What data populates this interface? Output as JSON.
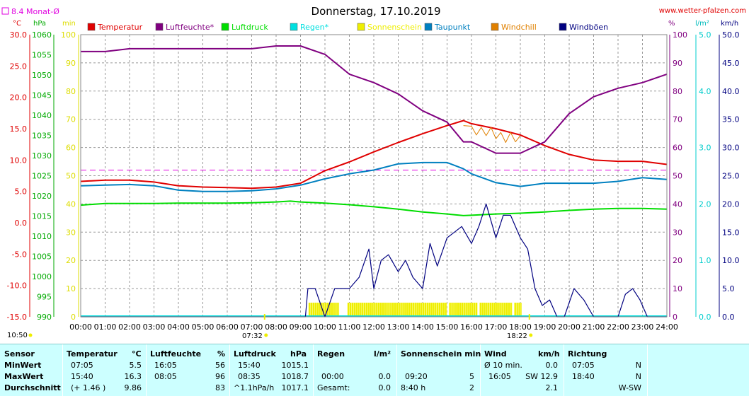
{
  "title": "Donnerstag, 17.10.2019",
  "site": "www.wetter-pfalzen.com",
  "monthly_avg_label": "8.4 Monat-Ø",
  "units": {
    "temp": "°C",
    "press": "hPa",
    "min": "min",
    "pct": "%",
    "rain": "l/m²",
    "wind": "km/h"
  },
  "legend": [
    {
      "name": "Temperatur",
      "color": "#e00000"
    },
    {
      "name": "Luftfeuchte*",
      "color": "#800080"
    },
    {
      "name": "Luftdruck",
      "color": "#00dd00"
    },
    {
      "name": "Regen*",
      "color": "#00e0e0"
    },
    {
      "name": "Sonnenschein",
      "color": "#eeee00"
    },
    {
      "name": "Taupunkt",
      "color": "#0080c0"
    },
    {
      "name": "Windchill",
      "color": "#e08000"
    },
    {
      "name": "Windböen",
      "color": "#000080"
    }
  ],
  "markers": {
    "left_time": "10:50",
    "sunrise": "07:32",
    "sunset": "18:22"
  },
  "chart_data": {
    "type": "line",
    "x_ticks": [
      "00:00",
      "01:00",
      "02:00",
      "03:00",
      "04:00",
      "05:00",
      "06:00",
      "07:00",
      "08:00",
      "09:00",
      "10:00",
      "11:00",
      "12:00",
      "13:00",
      "14:00",
      "15:00",
      "16:00",
      "17:00",
      "18:00",
      "19:00",
      "20:00",
      "21:00",
      "22:00",
      "23:00",
      "24:00"
    ],
    "axes": {
      "temperature": {
        "range": [
          -15,
          30
        ],
        "ticks": [
          "30.0",
          "25.0",
          "20.0",
          "15.0",
          "10.0",
          "5.0",
          "0.0",
          "-5.0",
          "-10.0",
          "-15.0"
        ]
      },
      "pressure": {
        "range": [
          990,
          1060
        ],
        "ticks": [
          "1060",
          "1055",
          "1050",
          "1045",
          "1040",
          "1035",
          "1030",
          "1025",
          "1020",
          "1015",
          "1010",
          "1005",
          "1000",
          "995",
          "990"
        ]
      },
      "sunshine_min": {
        "range": [
          0,
          100
        ],
        "ticks": [
          "100",
          "90",
          "80",
          "70",
          "60",
          "50",
          "40",
          "30",
          "20",
          "10",
          "0"
        ]
      },
      "humidity": {
        "range": [
          0,
          100
        ],
        "ticks": [
          "100",
          "90",
          "80",
          "70",
          "60",
          "50",
          "40",
          "30",
          "20",
          "10",
          "0"
        ]
      },
      "rain": {
        "range": [
          0,
          5
        ],
        "ticks": [
          "5.0",
          "4.0",
          "3.0",
          "2.0",
          "1.0",
          "0.0"
        ]
      },
      "wind": {
        "range": [
          0,
          50
        ],
        "ticks": [
          "50.0",
          "45.0",
          "40.0",
          "35.0",
          "30.0",
          "25.0",
          "20.0",
          "15.0",
          "10.0",
          "5.0",
          "0.0"
        ]
      }
    },
    "monthly_avg_temp": 8.4,
    "series": [
      {
        "name": "Temperatur",
        "axis": "temperature",
        "x": [
          0,
          1,
          2,
          3,
          4,
          5,
          6,
          7,
          8,
          9,
          10,
          11,
          12,
          13,
          14,
          15,
          15.67,
          16,
          17,
          18,
          19,
          20,
          21,
          22,
          23,
          24
        ],
        "y": [
          6.6,
          6.8,
          6.8,
          6.5,
          5.9,
          5.7,
          5.6,
          5.5,
          5.7,
          6.3,
          8.3,
          9.7,
          11.3,
          12.8,
          14.2,
          15.5,
          16.3,
          15.8,
          15.0,
          14.0,
          12.3,
          10.9,
          10.0,
          9.8,
          9.8,
          9.3
        ]
      },
      {
        "name": "Luftfeuchte*",
        "axis": "humidity",
        "x": [
          0,
          1,
          2,
          3,
          4,
          5,
          6,
          7,
          8,
          8.08,
          9,
          10,
          11,
          12,
          13,
          14,
          15,
          15.67,
          16,
          17,
          18,
          19,
          20,
          21,
          22,
          23,
          24
        ],
        "y": [
          94,
          94,
          95,
          95,
          95,
          95,
          95,
          95,
          96,
          96,
          96,
          93,
          86,
          83,
          79,
          73,
          69,
          62,
          62,
          58,
          58,
          62,
          72,
          78,
          81,
          83,
          86
        ]
      },
      {
        "name": "Luftdruck",
        "axis": "pressure",
        "x": [
          0,
          1,
          2,
          3,
          4,
          5,
          6,
          7,
          8,
          8.58,
          9,
          10,
          11,
          12,
          13,
          14,
          15,
          15.67,
          16,
          17,
          18,
          19,
          20,
          21,
          22,
          23,
          24
        ],
        "y": [
          1017.7,
          1018.1,
          1018.1,
          1018.1,
          1018.2,
          1018.2,
          1018.2,
          1018.3,
          1018.5,
          1018.7,
          1018.5,
          1018.2,
          1017.8,
          1017.3,
          1016.7,
          1016.0,
          1015.5,
          1015.1,
          1015.2,
          1015.5,
          1015.7,
          1016.0,
          1016.4,
          1016.7,
          1016.9,
          1016.9,
          1016.7
        ]
      },
      {
        "name": "Taupunkt",
        "axis": "temperature",
        "x": [
          0,
          1,
          2,
          3,
          4,
          5,
          6,
          7,
          8,
          9,
          10,
          11,
          12,
          13,
          14,
          15,
          15.67,
          16,
          17,
          18,
          19,
          20,
          21,
          22,
          23,
          24
        ],
        "y": [
          5.9,
          6.0,
          6.1,
          5.9,
          5.2,
          5.0,
          5.0,
          5.1,
          5.4,
          6.0,
          7.0,
          7.8,
          8.4,
          9.4,
          9.6,
          9.6,
          8.6,
          7.8,
          6.4,
          5.8,
          6.3,
          6.3,
          6.3,
          6.6,
          7.2,
          6.9
        ]
      },
      {
        "name": "Windchill",
        "axis": "temperature",
        "x": [
          15.67,
          16,
          16.2,
          16.4,
          16.6,
          16.8,
          17,
          17.2,
          17.4,
          17.6,
          17.8,
          18
        ],
        "y": [
          15.5,
          15.4,
          14.0,
          15.2,
          13.9,
          15.2,
          13.4,
          14.4,
          12.8,
          14.4,
          12.9,
          13.9
        ]
      },
      {
        "name": "Windböen",
        "axis": "wind",
        "x": [
          0,
          9.2,
          9.3,
          9.6,
          10.0,
          10.4,
          10.7,
          11.0,
          11.4,
          11.8,
          12.0,
          12.3,
          12.6,
          13.0,
          13.3,
          13.6,
          14.0,
          14.3,
          14.6,
          15.0,
          15.3,
          15.6,
          16.0,
          16.3,
          16.6,
          17.0,
          17.3,
          17.6,
          18.0,
          18.3,
          18.6,
          18.9,
          19.2,
          19.5,
          19.8,
          20.2,
          20.6,
          21.0,
          21.4,
          22.0,
          22.3,
          22.6,
          22.9,
          23.2,
          24
        ],
        "y": [
          0,
          0,
          5,
          5,
          0,
          5,
          5,
          5,
          7,
          12,
          5,
          10,
          11,
          8,
          10,
          7,
          5,
          13,
          9,
          14,
          15,
          16,
          13,
          16,
          20,
          14,
          18,
          18,
          14,
          12,
          5,
          2,
          3,
          0,
          0,
          5,
          3,
          0,
          0,
          0,
          4,
          5,
          3,
          0,
          0
        ]
      }
    ],
    "sunshine_periods": [
      [
        9.33,
        10.58
      ],
      [
        10.92,
        15.0
      ],
      [
        15.08,
        16.25
      ],
      [
        16.33,
        17.67
      ],
      [
        17.75,
        18.05
      ]
    ]
  },
  "stats": {
    "headers": {
      "sensor": "Sensor",
      "temp": "Temperatur",
      "temp_unit": "°C",
      "hum": "Luftfeuchte",
      "hum_unit": "%",
      "press": "Luftdruck",
      "press_unit": "hPa",
      "rain": "Regen",
      "rain_unit": "l/m²",
      "sun": "Sonnenschein min",
      "wind": "Wind",
      "wind_unit": "km/h",
      "dir": "Richtung"
    },
    "rows": [
      {
        "label": "MinWert",
        "temp_time": "07:05",
        "temp": "5.5",
        "hum_time": "16:05",
        "hum": "56",
        "press_time": "15:40",
        "press": "1015.1",
        "rain_time": "",
        "rain": "",
        "sun_time": "",
        "sun": "",
        "wind_time": "Ø 10 min.",
        "wind": "0.0",
        "dir_time": "07:05",
        "dir": "N"
      },
      {
        "label": "MaxWert",
        "temp_time": "15:40",
        "temp": "16.3",
        "hum_time": "08:05",
        "hum": "96",
        "press_time": "08:35",
        "press": "1018.7",
        "rain_time": "00:00",
        "rain": "0.0",
        "sun_time": "09:20",
        "sun": "5",
        "wind_time": "16:05",
        "wind": "SW 12.9",
        "dir_time": "18:40",
        "dir": "N"
      },
      {
        "label": "Durchschnitt",
        "temp_time": "(+ 1.46 )",
        "temp": "9.86",
        "hum_time": "",
        "hum": "83",
        "press_time": "^1.1hPa/h",
        "press": "1017.1",
        "rain_time": "Gesamt:",
        "rain": "0.0",
        "sun_time": "8:40 h",
        "sun": "2",
        "wind_time": "",
        "wind": "2.1",
        "dir_time": "",
        "dir": "W-SW"
      }
    ]
  }
}
